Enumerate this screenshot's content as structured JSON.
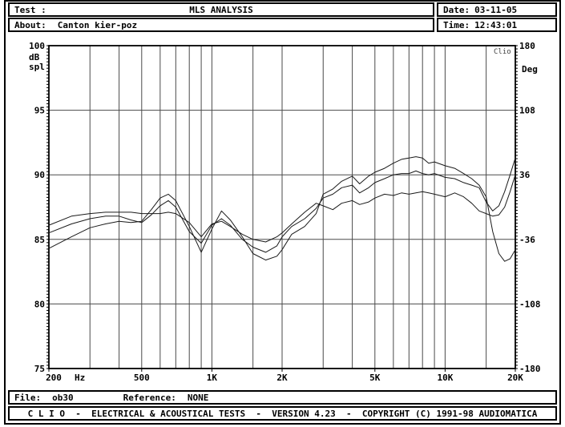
{
  "header": {
    "test_label": "Test :",
    "title": "MLS ANALYSIS",
    "date_label": "Date:",
    "date_value": "03-11-05",
    "about_label": "About:",
    "about_value": "Canton kier-poz",
    "time_label": "Time:",
    "time_value": "12:43:01"
  },
  "file_bar": {
    "file_label": "File:",
    "file_value": "ob30",
    "reference_label": "Reference:",
    "reference_value": "NONE"
  },
  "footer": {
    "credit_line": "C L I O  -  ELECTRICAL & ACOUSTICAL TESTS  -  VERSION 4.23  -  COPYRIGHT (C) 1991-98 AUDIOMATICA"
  },
  "colors": {
    "foreground": "#000000",
    "grid": "#4a4a4a",
    "curve": "#1a1a1a",
    "watermark": "#444444",
    "background": "#ffffff"
  },
  "chart_data": {
    "type": "line",
    "title": "MLS ANALYSIS",
    "watermark": "Clio",
    "grid": true,
    "x_axis": {
      "unit_label": "Hz",
      "scale": "log",
      "min": 200,
      "max": 20000,
      "tick_values": [
        200,
        500,
        1000,
        2000,
        5000,
        10000,
        20000
      ],
      "tick_labels": [
        "200",
        "500",
        "1K",
        "2K",
        "5K",
        "10K",
        "20K"
      ],
      "gridline_values": [
        300,
        400,
        500,
        600,
        700,
        800,
        900,
        1000,
        1500,
        2000,
        3000,
        4000,
        5000,
        6000,
        7000,
        8000,
        9000,
        10000,
        15000
      ]
    },
    "y_axis_left": {
      "label_line1": "dB",
      "label_line2": "spl",
      "min": 75,
      "max": 100,
      "tick_values": [
        100,
        95,
        90,
        85,
        80,
        75
      ],
      "gridline_values": [
        95,
        90,
        85,
        80
      ],
      "minor_tick_step": 0.25
    },
    "y_axis_right": {
      "label": "Deg",
      "min": -180,
      "max": 180,
      "tick_values": [
        180,
        108,
        36,
        -36,
        -108,
        -180
      ]
    },
    "x": [
      200,
      250,
      300,
      350,
      400,
      450,
      500,
      550,
      600,
      650,
      700,
      800,
      900,
      1000,
      1100,
      1200,
      1350,
      1500,
      1700,
      1900,
      2000,
      2200,
      2500,
      2800,
      3000,
      3300,
      3600,
      4000,
      4300,
      4700,
      5000,
      5500,
      6000,
      6500,
      7000,
      7500,
      8000,
      8500,
      9000,
      10000,
      11000,
      12000,
      13000,
      14000,
      15000,
      16000,
      17000,
      18000,
      19000,
      20000
    ],
    "series": [
      {
        "name": "response-curve-1",
        "values": [
          84.3,
          85.2,
          85.9,
          86.2,
          86.4,
          86.3,
          86.4,
          87.3,
          88.2,
          88.5,
          88.0,
          86.0,
          84.0,
          85.8,
          87.2,
          86.5,
          85.2,
          83.9,
          83.4,
          83.7,
          84.2,
          85.4,
          86.0,
          87.0,
          88.5,
          88.9,
          89.5,
          89.9,
          89.3,
          89.9,
          90.2,
          90.5,
          90.9,
          91.2,
          91.3,
          91.4,
          91.3,
          90.9,
          91.0,
          90.7,
          90.5,
          90.1,
          89.7,
          89.2,
          88.3,
          85.6,
          83.9,
          83.3,
          83.5,
          84.2
        ]
      },
      {
        "name": "response-curve-2",
        "values": [
          85.5,
          86.2,
          86.6,
          86.8,
          86.8,
          86.5,
          86.3,
          86.9,
          87.6,
          88.0,
          87.5,
          85.6,
          84.7,
          86.1,
          86.6,
          86.1,
          85.0,
          84.4,
          84.0,
          84.5,
          85.2,
          86.0,
          86.6,
          87.4,
          88.2,
          88.5,
          89.0,
          89.2,
          88.6,
          89.0,
          89.4,
          89.7,
          90.0,
          90.1,
          90.1,
          90.3,
          90.1,
          90.0,
          90.1,
          89.8,
          89.7,
          89.4,
          89.2,
          89.0,
          87.9,
          87.2,
          87.6,
          88.7,
          90.0,
          91.3
        ]
      },
      {
        "name": "response-curve-3",
        "values": [
          86.1,
          86.8,
          87.0,
          87.1,
          87.1,
          87.1,
          87.0,
          87.0,
          87.0,
          87.1,
          87.0,
          86.3,
          85.2,
          86.2,
          86.4,
          86.0,
          85.4,
          85.0,
          84.8,
          85.2,
          85.5,
          86.2,
          87.1,
          87.8,
          87.6,
          87.3,
          87.8,
          88.0,
          87.7,
          87.9,
          88.2,
          88.5,
          88.4,
          88.6,
          88.5,
          88.6,
          88.7,
          88.6,
          88.5,
          88.3,
          88.6,
          88.3,
          87.8,
          87.2,
          87.0,
          86.8,
          86.9,
          87.5,
          88.7,
          90.0
        ]
      }
    ]
  }
}
